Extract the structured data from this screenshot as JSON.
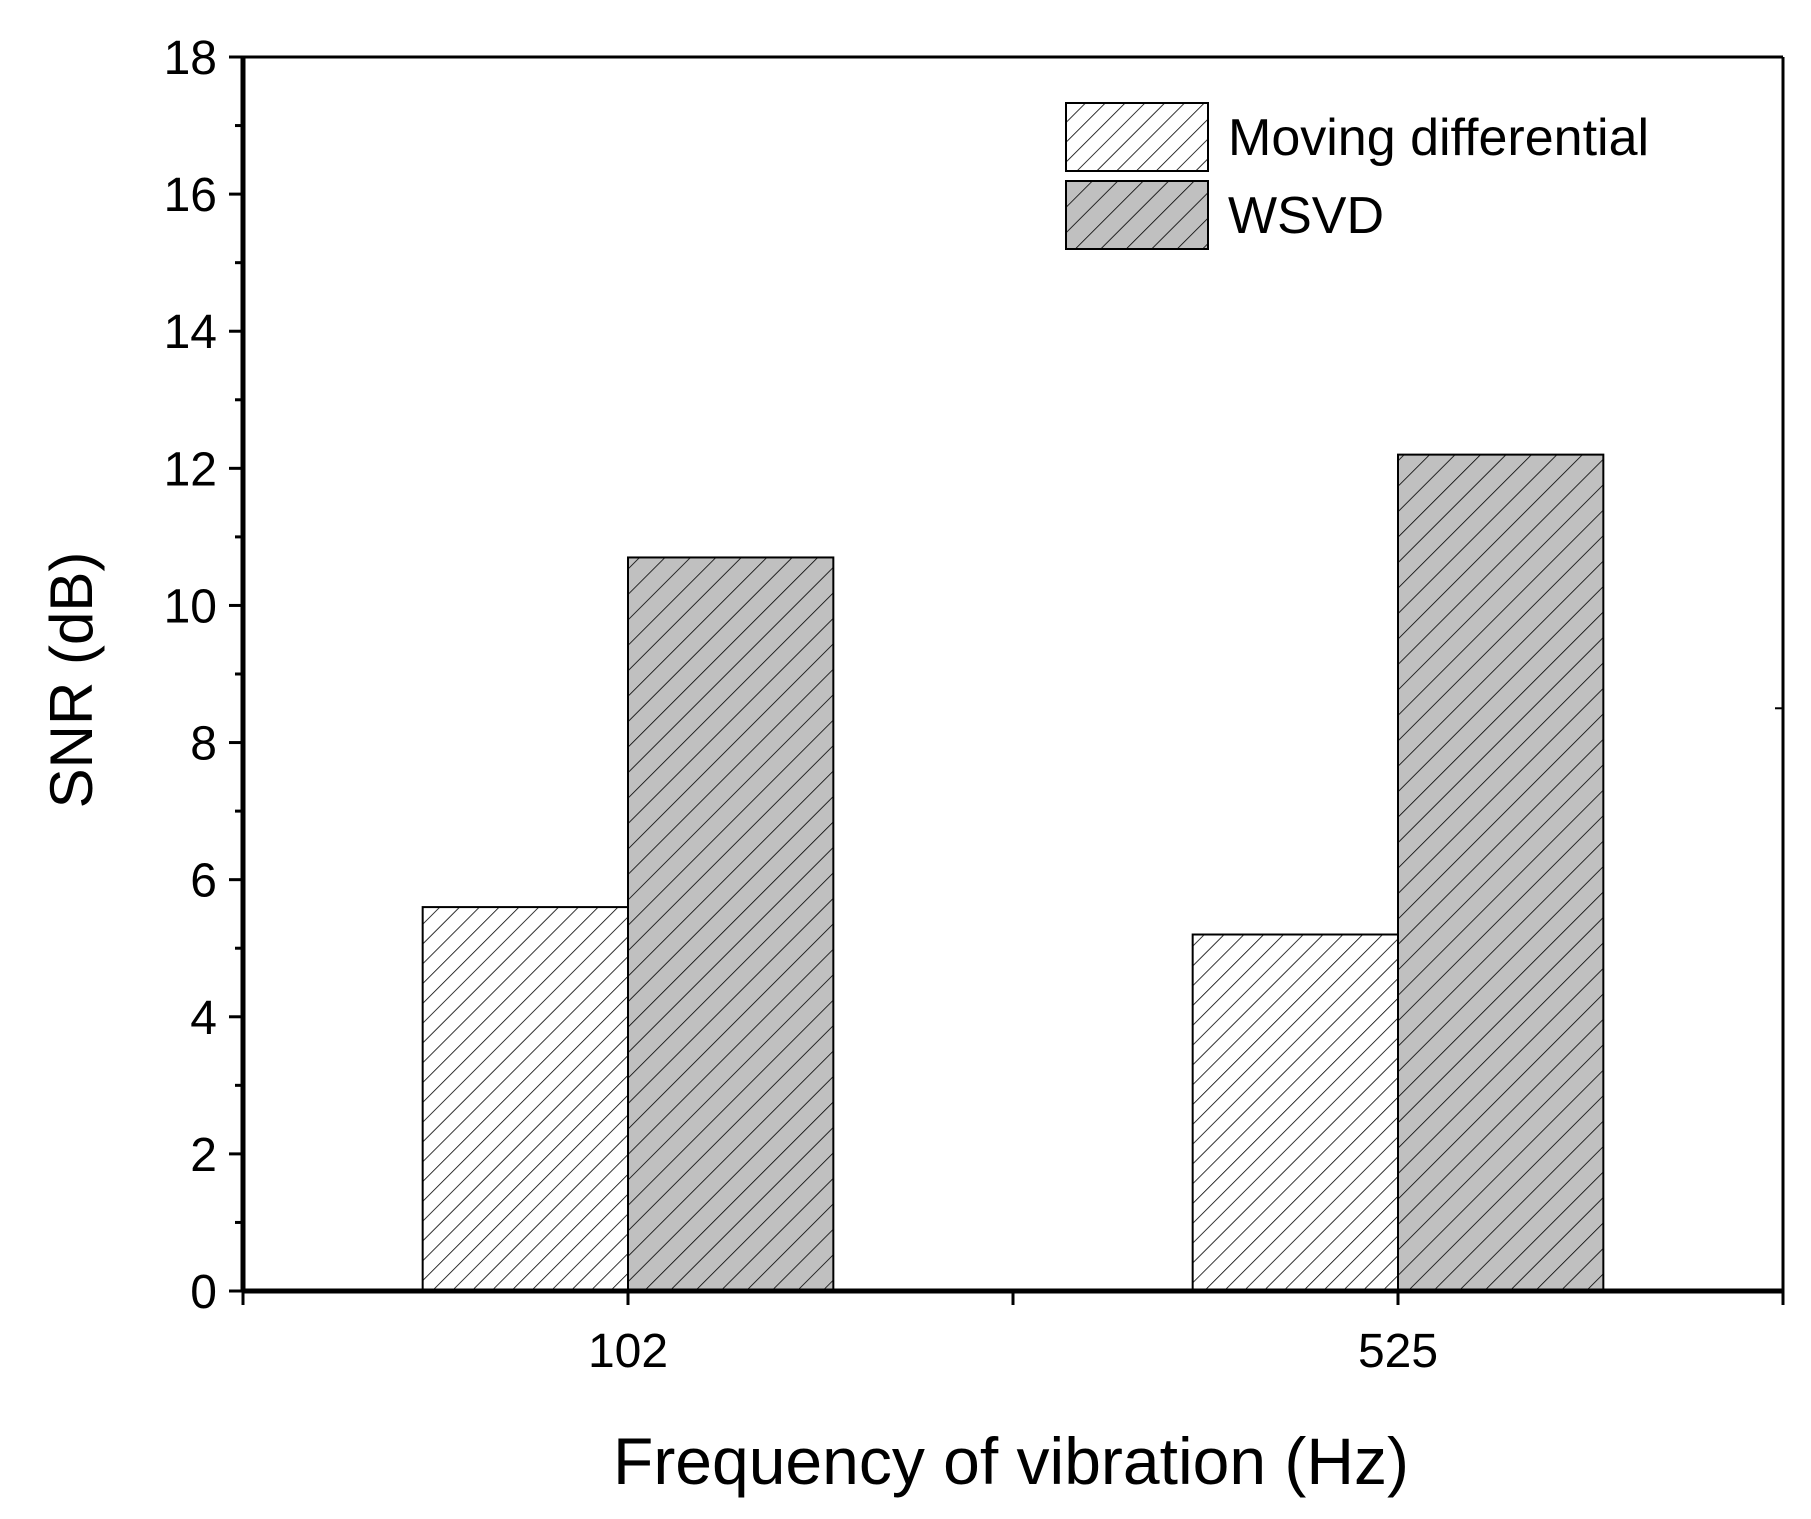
{
  "chart_data": {
    "type": "bar",
    "title": "",
    "xlabel": "Frequency of vibration (Hz)",
    "ylabel": "SNR (dB)",
    "categories": [
      "102",
      "525"
    ],
    "series": [
      {
        "name": "Moving differential",
        "values": [
          5.6,
          5.2
        ],
        "fill": "#ffffff",
        "hatch": "dense"
      },
      {
        "name": "WSVD",
        "values": [
          10.7,
          12.2
        ],
        "fill": "#c0c0c0",
        "hatch": "sparse"
      }
    ],
    "ylim": [
      0,
      18
    ],
    "yticks": [
      "0",
      "2",
      "4",
      "6",
      "8",
      "10",
      "12",
      "14",
      "16",
      "18"
    ],
    "legend_position": "top-right",
    "grid": false
  }
}
